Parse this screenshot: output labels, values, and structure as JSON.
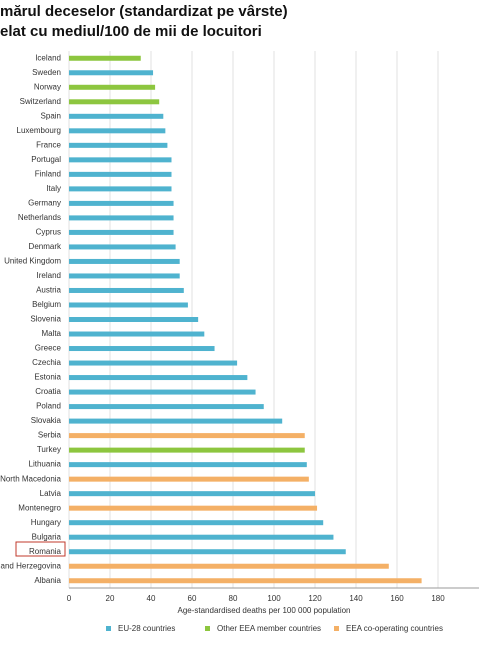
{
  "chart_data": {
    "type": "bar",
    "orientation": "horizontal",
    "title": [
      "mărul deceselor (standardizat pe vârste)",
      "elat cu mediul/100 de mii de locuitori"
    ],
    "categories": [
      "Iceland",
      "Sweden",
      "Norway",
      "Switzerland",
      "Spain",
      "Luxembourg",
      "France",
      "Portugal",
      "Finland",
      "Italy",
      "Germany",
      "Netherlands",
      "Cyprus",
      "Denmark",
      "United Kingdom",
      "Ireland",
      "Austria",
      "Belgium",
      "Slovenia",
      "Malta",
      "Greece",
      "Czechia",
      "Estonia",
      "Croatia",
      "Poland",
      "Slovakia",
      "Serbia",
      "Turkey",
      "Lithuania",
      "North Macedonia",
      "Latvia",
      "Montenegro",
      "Hungary",
      "Bulgaria",
      "Romania",
      "and Herzegovina",
      "Albania"
    ],
    "series": [
      {
        "name": "EU-28 countries",
        "color": "#4fb3cf",
        "values": [
          null,
          41,
          null,
          null,
          46,
          47,
          48,
          50,
          50,
          50,
          51,
          51,
          51,
          52,
          54,
          54,
          56,
          58,
          63,
          66,
          71,
          82,
          87,
          91,
          95,
          104,
          null,
          null,
          116,
          null,
          120,
          null,
          124,
          129,
          135,
          null,
          null
        ]
      },
      {
        "name": "Other EEA member countries",
        "color": "#8dc63f",
        "values": [
          35,
          null,
          42,
          44,
          null,
          null,
          null,
          null,
          null,
          null,
          null,
          null,
          null,
          null,
          null,
          null,
          null,
          null,
          null,
          null,
          null,
          null,
          null,
          null,
          null,
          null,
          null,
          115,
          null,
          null,
          null,
          null,
          null,
          null,
          null,
          null,
          null
        ]
      },
      {
        "name": "EEA co-operating countries",
        "color": "#f4b066",
        "values": [
          null,
          null,
          null,
          null,
          null,
          null,
          null,
          null,
          null,
          null,
          null,
          null,
          null,
          null,
          null,
          null,
          null,
          null,
          null,
          null,
          null,
          null,
          null,
          null,
          null,
          null,
          115,
          null,
          null,
          117,
          null,
          121,
          null,
          null,
          null,
          156,
          172
        ]
      }
    ],
    "xlabel": "Age-standardised deaths per 100 000 population",
    "xlim": [
      0,
      200
    ],
    "xticks": [
      0,
      20,
      40,
      60,
      80,
      100,
      120,
      140,
      160,
      180
    ],
    "grid": true
  }
}
